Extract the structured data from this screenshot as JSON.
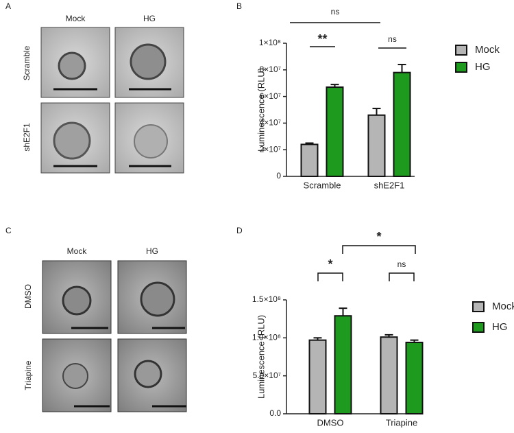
{
  "panel_labels": [
    "A",
    "B",
    "C",
    "D"
  ],
  "image_panels": [
    {
      "columns": [
        "Mock",
        "HG"
      ],
      "rows": [
        "Scramble",
        "shE2F1"
      ]
    },
    {
      "columns": [
        "Mock",
        "HG"
      ],
      "rows": [
        "DMSO",
        "Triapine"
      ]
    }
  ],
  "chart_data": [
    {
      "type": "bar",
      "y_label": "Luminescence (RLU)",
      "categories": [
        "Scramble",
        "shE2F1"
      ],
      "series": [
        {
          "name": "Mock",
          "color": "#b5b5b5",
          "values": [
            24000000,
            46000000
          ],
          "errors": [
            1000000,
            5000000
          ]
        },
        {
          "name": "HG",
          "color": "#1e9a1e",
          "values": [
            67000000,
            78000000
          ],
          "errors": [
            2000000,
            6000000
          ]
        }
      ],
      "ylim": [
        0,
        100000000
      ],
      "yticks": [
        0,
        {
          "value": 20000000,
          "label": "2×10⁷"
        },
        {
          "value": 40000000,
          "label": "4×10⁷"
        },
        {
          "value": 60000000,
          "label": "6×10⁷"
        },
        {
          "value": 80000000,
          "label": "8×10⁷"
        },
        {
          "value": 100000000,
          "label": "1×10⁸"
        }
      ],
      "annotations": [
        "**",
        "ns",
        "ns"
      ]
    },
    {
      "type": "bar",
      "y_label": "Luminescence (RLU)",
      "categories": [
        "DMSO",
        "Triapine"
      ],
      "series": [
        {
          "name": "Mock",
          "color": "#b5b5b5",
          "values": [
            97000000,
            101000000
          ],
          "errors": [
            3000000,
            3000000
          ]
        },
        {
          "name": "HG",
          "color": "#1e9a1e",
          "values": [
            129000000,
            94000000
          ],
          "errors": [
            10000000,
            3000000
          ]
        }
      ],
      "ylim": [
        0,
        150000000
      ],
      "yticks": [
        {
          "value": 0,
          "label": "0.0"
        },
        {
          "value": 50000000,
          "label": "5.0×10⁷"
        },
        {
          "value": 100000000,
          "label": "1.0×10⁸"
        },
        {
          "value": 150000000,
          "label": "1.5×10⁸"
        }
      ],
      "annotations": [
        "*",
        "ns",
        "*"
      ]
    }
  ]
}
